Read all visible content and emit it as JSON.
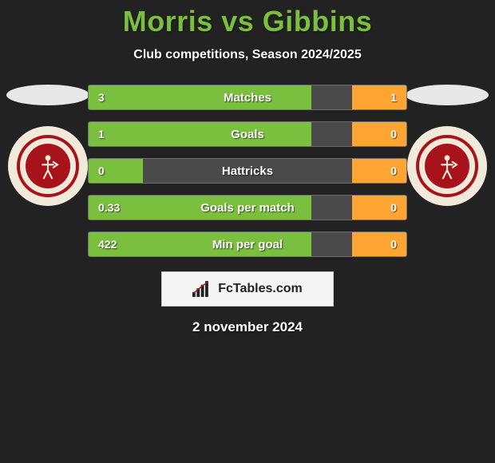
{
  "title": "Morris vs Gibbins",
  "subtitle": "Club competitions, Season 2024/2025",
  "date": "2 november 2024",
  "watermark": "FcTables.com",
  "colors": {
    "accent_green": "#7bbf3f",
    "accent_orange": "#ffa533",
    "bar_bg": "#4a4a4a",
    "bar_border": "#6e6e6e",
    "page_bg": "#222222",
    "badge_outer": "#f1e9da",
    "badge_ring": "#a8121a"
  },
  "stats": [
    {
      "label": "Matches",
      "left_value": "3",
      "right_value": "1",
      "left_width_pct": 70,
      "right_width_pct": 17
    },
    {
      "label": "Goals",
      "left_value": "1",
      "right_value": "0",
      "left_width_pct": 70,
      "right_width_pct": 17
    },
    {
      "label": "Hattricks",
      "left_value": "0",
      "right_value": "0",
      "left_width_pct": 17,
      "right_width_pct": 17
    },
    {
      "label": "Goals per match",
      "left_value": "0.33",
      "right_value": "0",
      "left_width_pct": 70,
      "right_width_pct": 17
    },
    {
      "label": "Min per goal",
      "left_value": "422",
      "right_value": "0",
      "left_width_pct": 70,
      "right_width_pct": 17
    }
  ]
}
